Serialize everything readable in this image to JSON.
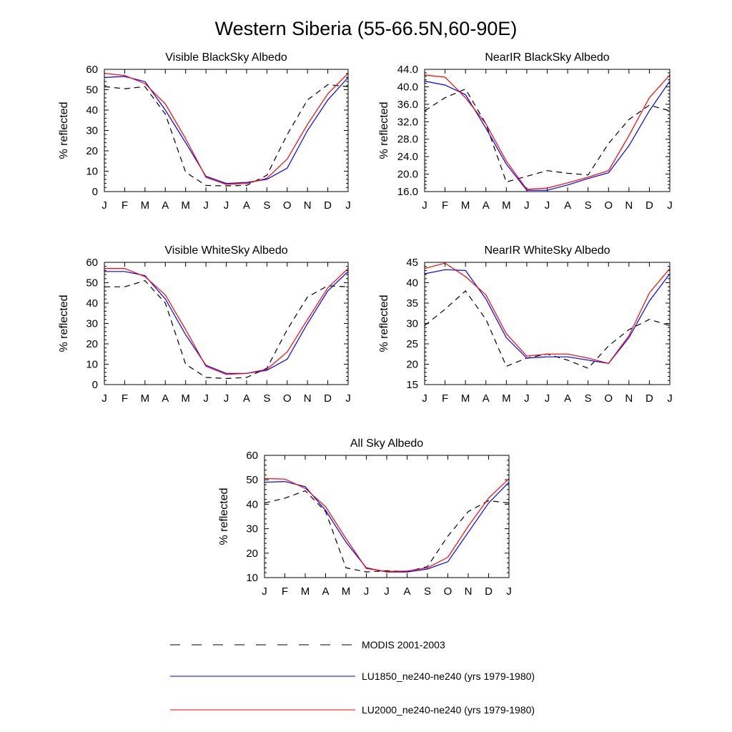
{
  "figure": {
    "title": "Western Siberia (55-66.5N,60-90E)"
  },
  "legend": [
    {
      "label": "MODIS 2001-2003",
      "color": "#000000",
      "style": "dashed"
    },
    {
      "label": "LU1850_ne240-ne240 (yrs 1979-1980)",
      "color": "#0000ff",
      "style": "solid"
    },
    {
      "label": "LU2000_ne240-ne240 (yrs 1979-1980)",
      "color": "#ff0000",
      "style": "solid"
    }
  ],
  "chart_data": [
    {
      "type": "line",
      "title": "Visible BlackSky Albedo",
      "ylabel": "% reflected",
      "xlabel": "",
      "categories": [
        "J",
        "F",
        "M",
        "A",
        "M",
        "J",
        "J",
        "A",
        "S",
        "O",
        "N",
        "D",
        "J"
      ],
      "ylim": [
        0,
        60
      ],
      "yticks": [
        "0",
        "10",
        "20",
        "30",
        "40",
        "50",
        "60"
      ],
      "series": [
        {
          "name": "MODIS 2001-2003",
          "values": [
            51.5,
            50.5,
            51.5,
            38,
            9.5,
            3,
            2.8,
            3,
            8,
            28,
            45,
            52.5,
            51.5
          ]
        },
        {
          "name": "LU1850_ne240-ne240 (yrs 1979-1980)",
          "values": [
            56,
            56.5,
            54,
            40,
            24,
            7.5,
            4,
            4.5,
            6,
            11.5,
            30,
            45,
            56
          ]
        },
        {
          "name": "LU2000_ne240-ne240 (yrs 1979-1980)",
          "values": [
            58,
            57,
            53,
            43,
            26,
            7,
            3.5,
            4,
            6.5,
            16,
            33,
            48,
            58
          ]
        }
      ]
    },
    {
      "type": "line",
      "title": "NearIR BlackSky Albedo",
      "ylabel": "% reflected",
      "xlabel": "",
      "categories": [
        "J",
        "F",
        "M",
        "A",
        "M",
        "J",
        "J",
        "A",
        "S",
        "O",
        "N",
        "D",
        "J"
      ],
      "ylim": [
        16,
        44
      ],
      "yticks": [
        "16.0",
        "20.0",
        "24.0",
        "28.0",
        "32.0",
        "36.0",
        "40.0",
        "44.0"
      ],
      "series": [
        {
          "name": "MODIS 2001-2003",
          "values": [
            34.5,
            37.5,
            39.5,
            31.5,
            18.2,
            19.5,
            20.8,
            20.2,
            19.8,
            27,
            32.5,
            35.8,
            34.5
          ]
        },
        {
          "name": "LU1850_ne240-ne240 (yrs 1979-1980)",
          "values": [
            41.3,
            40.4,
            38.2,
            30.5,
            22.3,
            16.3,
            16.3,
            17.5,
            19,
            20.3,
            26.5,
            34.5,
            41.3
          ]
        },
        {
          "name": "LU2000_ne240-ne240 (yrs 1979-1980)",
          "values": [
            42.7,
            42.2,
            37.5,
            31.5,
            23,
            16.5,
            16.8,
            18,
            19.3,
            20.8,
            28.8,
            37.5,
            42.7
          ]
        }
      ]
    },
    {
      "type": "line",
      "title": "Visible WhiteSky Albedo",
      "ylabel": "% reflected",
      "xlabel": "",
      "categories": [
        "J",
        "F",
        "M",
        "A",
        "M",
        "J",
        "J",
        "A",
        "S",
        "O",
        "N",
        "D",
        "J"
      ],
      "ylim": [
        0,
        60
      ],
      "yticks": [
        "0",
        "10",
        "20",
        "30",
        "40",
        "50",
        "60"
      ],
      "series": [
        {
          "name": "MODIS 2001-2003",
          "values": [
            48,
            48,
            51,
            40,
            10,
            3.5,
            3,
            3.5,
            8,
            27,
            43,
            48.5,
            48
          ]
        },
        {
          "name": "LU1850_ne240-ne240 (yrs 1979-1980)",
          "values": [
            55.5,
            55.5,
            53.5,
            42,
            24.5,
            9.5,
            5.5,
            5.5,
            7,
            12.5,
            30,
            46,
            55.5
          ]
        },
        {
          "name": "LU2000_ne240-ne240 (yrs 1979-1980)",
          "values": [
            57,
            57,
            53,
            44,
            27,
            9,
            5,
            5.5,
            7.5,
            16,
            32,
            47.5,
            57
          ]
        }
      ]
    },
    {
      "type": "line",
      "title": "NearIR WhiteSky Albedo",
      "ylabel": "% reflected",
      "xlabel": "",
      "categories": [
        "J",
        "F",
        "M",
        "A",
        "M",
        "J",
        "J",
        "A",
        "S",
        "O",
        "N",
        "D",
        "J"
      ],
      "ylim": [
        15,
        45
      ],
      "yticks": [
        "15",
        "20",
        "25",
        "30",
        "35",
        "40",
        "45"
      ],
      "series": [
        {
          "name": "MODIS 2001-2003",
          "values": [
            29.5,
            33.5,
            38,
            31,
            19.5,
            21.5,
            22.5,
            21,
            19,
            24.5,
            28.5,
            31,
            29.5
          ]
        },
        {
          "name": "LU1850_ne240-ne240 (yrs 1979-1980)",
          "values": [
            42.2,
            43.2,
            43,
            36,
            26.5,
            21.5,
            21.8,
            21.8,
            21,
            20.2,
            26.5,
            35.5,
            42.2
          ]
        },
        {
          "name": "LU2000_ne240-ne240 (yrs 1979-1980)",
          "values": [
            43.5,
            44.8,
            41.5,
            37,
            27.5,
            22,
            22.5,
            22.5,
            21.5,
            20.2,
            27,
            37.5,
            43.5
          ]
        }
      ]
    },
    {
      "type": "line",
      "title": "All Sky Albedo",
      "ylabel": "% reflected",
      "xlabel": "",
      "categories": [
        "J",
        "F",
        "M",
        "A",
        "M",
        "J",
        "J",
        "A",
        "S",
        "O",
        "N",
        "D",
        "J"
      ],
      "ylim": [
        10,
        60
      ],
      "yticks": [
        "10",
        "20",
        "30",
        "40",
        "50",
        "60"
      ],
      "series": [
        {
          "name": "MODIS 2001-2003",
          "values": [
            40.5,
            42.5,
            45.5,
            37,
            14,
            12.3,
            12.8,
            12.5,
            14.5,
            27,
            37,
            41.5,
            40.5
          ]
        },
        {
          "name": "LU1850_ne240-ne240 (yrs 1979-1980)",
          "values": [
            49,
            49.3,
            47.2,
            37.5,
            24.5,
            14,
            12.3,
            12.3,
            13.5,
            16.5,
            28.5,
            40.5,
            49
          ]
        },
        {
          "name": "LU2000_ne240-ne240 (yrs 1979-1980)",
          "values": [
            50.5,
            50.3,
            46.5,
            39,
            26,
            13.7,
            12.5,
            12.7,
            14,
            18.3,
            31,
            42.5,
            50.5
          ]
        }
      ]
    }
  ]
}
